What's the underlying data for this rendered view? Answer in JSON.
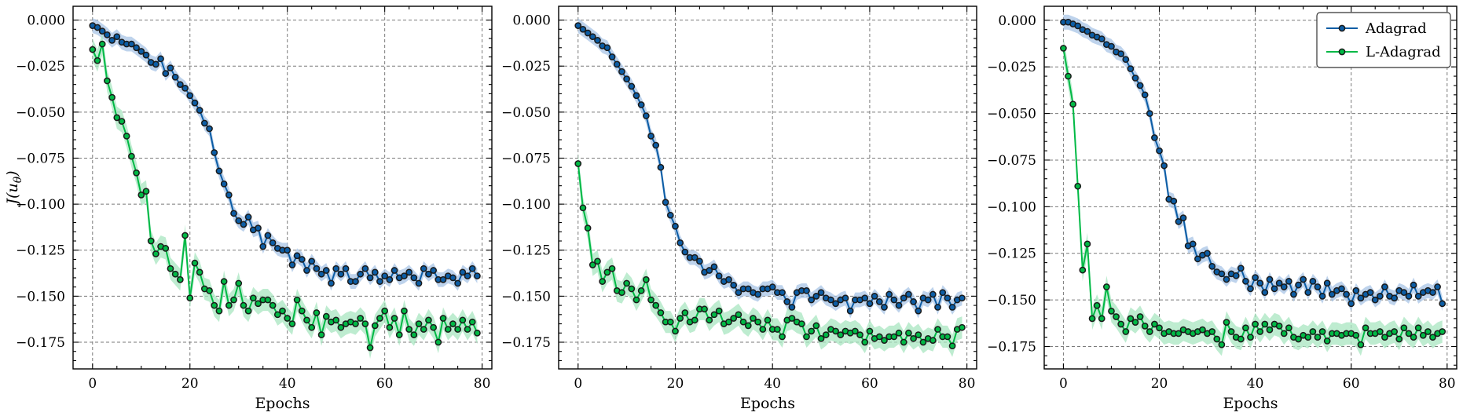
{
  "chart_data": [
    {
      "type": "line",
      "title": "",
      "xlabel": "Epochs",
      "ylabel": "J(u_θ)",
      "xlim": [
        -4,
        82
      ],
      "ylim": [
        -0.1895,
        0.0075
      ],
      "x_ticks": [
        0,
        20,
        40,
        60,
        80
      ],
      "x_tick_labels": [
        "0",
        "20",
        "40",
        "60",
        "80"
      ],
      "y_ticks": [
        0.0,
        -0.025,
        -0.05,
        -0.075,
        -0.1,
        -0.125,
        -0.15,
        -0.175
      ],
      "y_tick_labels": [
        "0.000",
        "−0.025",
        "−0.050",
        "−0.075",
        "−0.100",
        "−0.125",
        "−0.150",
        "−0.175"
      ],
      "grid": true,
      "legend": null,
      "series": [
        {
          "name": "Adagrad",
          "color": "#0C5DA5",
          "band_color": "#a8c4e6",
          "band": 0.004,
          "values": [
            -0.003,
            -0.004,
            -0.006,
            -0.008,
            -0.011,
            -0.009,
            -0.012,
            -0.013,
            -0.013,
            -0.015,
            -0.017,
            -0.019,
            -0.023,
            -0.024,
            -0.021,
            -0.029,
            -0.026,
            -0.031,
            -0.035,
            -0.037,
            -0.041,
            -0.045,
            -0.049,
            -0.056,
            -0.059,
            -0.072,
            -0.082,
            -0.089,
            -0.095,
            -0.105,
            -0.109,
            -0.111,
            -0.107,
            -0.114,
            -0.113,
            -0.123,
            -0.117,
            -0.121,
            -0.124,
            -0.125,
            -0.125,
            -0.133,
            -0.128,
            -0.13,
            -0.136,
            -0.131,
            -0.135,
            -0.138,
            -0.136,
            -0.143,
            -0.135,
            -0.138,
            -0.135,
            -0.142,
            -0.142,
            -0.138,
            -0.135,
            -0.14,
            -0.137,
            -0.142,
            -0.139,
            -0.141,
            -0.136,
            -0.14,
            -0.139,
            -0.137,
            -0.14,
            -0.143,
            -0.135,
            -0.138,
            -0.136,
            -0.141,
            -0.141,
            -0.139,
            -0.14,
            -0.143,
            -0.137,
            -0.139,
            -0.135,
            -0.139
          ]
        },
        {
          "name": "L-Adagrad",
          "color": "#00B945",
          "band_color": "#a8e6c0",
          "band": 0.006,
          "values": [
            -0.016,
            -0.022,
            -0.013,
            -0.033,
            -0.042,
            -0.053,
            -0.055,
            -0.063,
            -0.074,
            -0.083,
            -0.095,
            -0.093,
            -0.12,
            -0.127,
            -0.123,
            -0.124,
            -0.135,
            -0.138,
            -0.141,
            -0.117,
            -0.151,
            -0.132,
            -0.137,
            -0.146,
            -0.147,
            -0.155,
            -0.158,
            -0.142,
            -0.155,
            -0.152,
            -0.143,
            -0.155,
            -0.158,
            -0.151,
            -0.154,
            -0.152,
            -0.152,
            -0.155,
            -0.16,
            -0.158,
            -0.162,
            -0.165,
            -0.152,
            -0.158,
            -0.163,
            -0.167,
            -0.159,
            -0.171,
            -0.161,
            -0.164,
            -0.163,
            -0.167,
            -0.165,
            -0.164,
            -0.165,
            -0.162,
            -0.165,
            -0.178,
            -0.166,
            -0.162,
            -0.158,
            -0.167,
            -0.162,
            -0.171,
            -0.158,
            -0.168,
            -0.171,
            -0.165,
            -0.168,
            -0.163,
            -0.167,
            -0.175,
            -0.162,
            -0.168,
            -0.165,
            -0.168,
            -0.163,
            -0.168,
            -0.164,
            -0.17
          ]
        }
      ]
    },
    {
      "type": "line",
      "title": "",
      "xlabel": "Epochs",
      "ylabel": "",
      "xlim": [
        -4,
        82
      ],
      "ylim": [
        -0.1895,
        0.0075
      ],
      "x_ticks": [
        0,
        20,
        40,
        60,
        80
      ],
      "x_tick_labels": [
        "0",
        "20",
        "40",
        "60",
        "80"
      ],
      "y_ticks": [
        0.0,
        -0.025,
        -0.05,
        -0.075,
        -0.1,
        -0.125,
        -0.15,
        -0.175
      ],
      "y_tick_labels": [
        "0.000",
        "−0.025",
        "−0.050",
        "−0.075",
        "−0.100",
        "−0.125",
        "−0.150",
        "−0.175"
      ],
      "grid": true,
      "legend": null,
      "series": [
        {
          "name": "Adagrad",
          "color": "#0C5DA5",
          "band_color": "#a8c4e6",
          "band": 0.004,
          "values": [
            -0.003,
            -0.005,
            -0.007,
            -0.009,
            -0.011,
            -0.014,
            -0.015,
            -0.02,
            -0.024,
            -0.028,
            -0.032,
            -0.036,
            -0.041,
            -0.046,
            -0.052,
            -0.063,
            -0.068,
            -0.08,
            -0.099,
            -0.106,
            -0.112,
            -0.121,
            -0.126,
            -0.129,
            -0.129,
            -0.131,
            -0.137,
            -0.136,
            -0.134,
            -0.139,
            -0.142,
            -0.141,
            -0.144,
            -0.148,
            -0.146,
            -0.146,
            -0.148,
            -0.149,
            -0.146,
            -0.146,
            -0.145,
            -0.148,
            -0.148,
            -0.153,
            -0.156,
            -0.148,
            -0.147,
            -0.147,
            -0.152,
            -0.15,
            -0.148,
            -0.151,
            -0.152,
            -0.154,
            -0.152,
            -0.151,
            -0.158,
            -0.152,
            -0.152,
            -0.151,
            -0.154,
            -0.15,
            -0.153,
            -0.156,
            -0.149,
            -0.152,
            -0.155,
            -0.151,
            -0.149,
            -0.153,
            -0.158,
            -0.151,
            -0.152,
            -0.149,
            -0.156,
            -0.148,
            -0.151,
            -0.156,
            -0.152,
            -0.151
          ]
        },
        {
          "name": "L-Adagrad",
          "color": "#00B945",
          "band_color": "#a8e6c0",
          "band": 0.006,
          "values": [
            -0.078,
            -0.102,
            -0.113,
            -0.133,
            -0.131,
            -0.142,
            -0.137,
            -0.135,
            -0.147,
            -0.148,
            -0.143,
            -0.146,
            -0.152,
            -0.147,
            -0.141,
            -0.152,
            -0.155,
            -0.159,
            -0.164,
            -0.164,
            -0.169,
            -0.162,
            -0.159,
            -0.164,
            -0.163,
            -0.157,
            -0.157,
            -0.163,
            -0.16,
            -0.158,
            -0.165,
            -0.164,
            -0.162,
            -0.16,
            -0.164,
            -0.166,
            -0.162,
            -0.164,
            -0.168,
            -0.163,
            -0.168,
            -0.168,
            -0.172,
            -0.163,
            -0.162,
            -0.164,
            -0.165,
            -0.172,
            -0.169,
            -0.166,
            -0.173,
            -0.171,
            -0.168,
            -0.169,
            -0.171,
            -0.169,
            -0.17,
            -0.169,
            -0.171,
            -0.175,
            -0.169,
            -0.173,
            -0.172,
            -0.174,
            -0.172,
            -0.172,
            -0.17,
            -0.175,
            -0.17,
            -0.173,
            -0.171,
            -0.175,
            -0.173,
            -0.174,
            -0.168,
            -0.172,
            -0.172,
            -0.177,
            -0.168,
            -0.167
          ]
        }
      ]
    },
    {
      "type": "line",
      "title": "",
      "xlabel": "Epochs",
      "ylabel": "",
      "xlim": [
        -4,
        82
      ],
      "ylim": [
        -0.187,
        0.0075
      ],
      "x_ticks": [
        0,
        20,
        40,
        60,
        80
      ],
      "x_tick_labels": [
        "0",
        "20",
        "40",
        "60",
        "80"
      ],
      "y_ticks": [
        0.0,
        -0.025,
        -0.05,
        -0.075,
        -0.1,
        -0.125,
        -0.15,
        -0.175
      ],
      "y_tick_labels": [
        "0.000",
        "−0.025",
        "−0.050",
        "−0.075",
        "−0.100",
        "−0.125",
        "−0.150",
        "−0.175"
      ],
      "grid": true,
      "legend": "top-right",
      "series": [
        {
          "name": "Adagrad",
          "color": "#0C5DA5",
          "band_color": "#a8c4e6",
          "band": 0.004,
          "values": [
            -0.001,
            -0.001,
            -0.002,
            -0.003,
            -0.005,
            -0.006,
            -0.008,
            -0.009,
            -0.01,
            -0.013,
            -0.014,
            -0.017,
            -0.018,
            -0.021,
            -0.026,
            -0.031,
            -0.035,
            -0.04,
            -0.05,
            -0.063,
            -0.07,
            -0.078,
            -0.096,
            -0.097,
            -0.108,
            -0.106,
            -0.121,
            -0.12,
            -0.128,
            -0.126,
            -0.125,
            -0.132,
            -0.135,
            -0.136,
            -0.139,
            -0.136,
            -0.137,
            -0.133,
            -0.14,
            -0.144,
            -0.138,
            -0.141,
            -0.146,
            -0.139,
            -0.144,
            -0.141,
            -0.143,
            -0.14,
            -0.147,
            -0.142,
            -0.139,
            -0.146,
            -0.14,
            -0.143,
            -0.148,
            -0.141,
            -0.147,
            -0.145,
            -0.144,
            -0.147,
            -0.152,
            -0.145,
            -0.149,
            -0.147,
            -0.146,
            -0.15,
            -0.148,
            -0.143,
            -0.148,
            -0.149,
            -0.145,
            -0.146,
            -0.148,
            -0.142,
            -0.148,
            -0.146,
            -0.145,
            -0.146,
            -0.143,
            -0.152
          ]
        },
        {
          "name": "L-Adagrad",
          "color": "#00B945",
          "band_color": "#a8e6c0",
          "band": 0.006,
          "values": [
            -0.015,
            -0.03,
            -0.045,
            -0.089,
            -0.134,
            -0.12,
            -0.16,
            -0.153,
            -0.16,
            -0.143,
            -0.156,
            -0.159,
            -0.163,
            -0.167,
            -0.16,
            -0.162,
            -0.159,
            -0.164,
            -0.167,
            -0.163,
            -0.165,
            -0.168,
            -0.167,
            -0.168,
            -0.168,
            -0.166,
            -0.167,
            -0.168,
            -0.167,
            -0.166,
            -0.168,
            -0.167,
            -0.171,
            -0.174,
            -0.162,
            -0.167,
            -0.17,
            -0.171,
            -0.165,
            -0.17,
            -0.163,
            -0.167,
            -0.163,
            -0.166,
            -0.163,
            -0.164,
            -0.168,
            -0.165,
            -0.17,
            -0.171,
            -0.169,
            -0.17,
            -0.167,
            -0.17,
            -0.167,
            -0.172,
            -0.168,
            -0.168,
            -0.169,
            -0.168,
            -0.168,
            -0.169,
            -0.174,
            -0.165,
            -0.168,
            -0.168,
            -0.167,
            -0.17,
            -0.168,
            -0.167,
            -0.171,
            -0.165,
            -0.168,
            -0.17,
            -0.165,
            -0.169,
            -0.167,
            -0.17,
            -0.168,
            -0.167
          ]
        }
      ]
    }
  ]
}
